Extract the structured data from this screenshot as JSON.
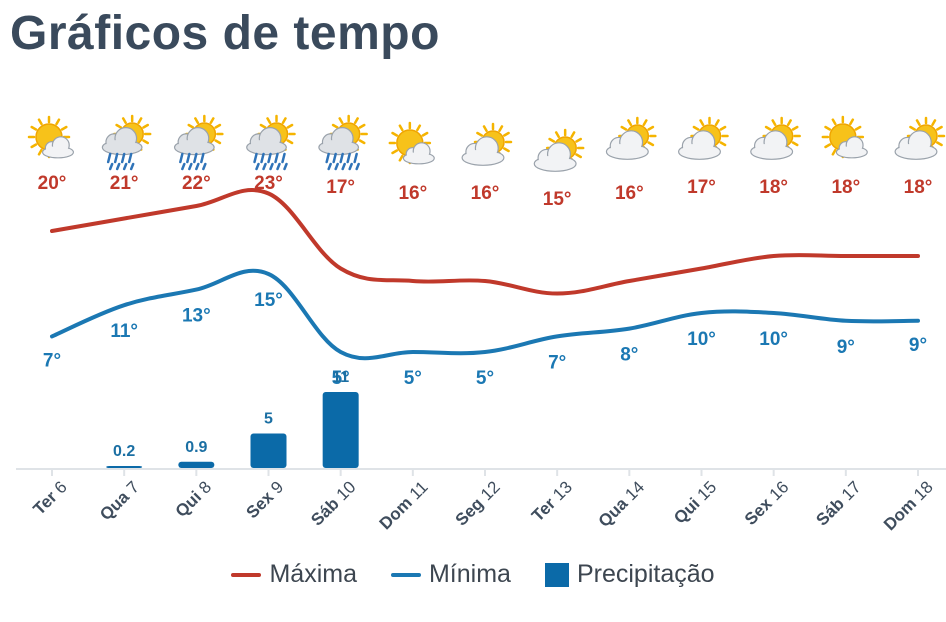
{
  "title": "Gráficos de tempo",
  "colors": {
    "max": "#c0392b",
    "min": "#1b78b3",
    "precip": "#0b6aa8",
    "axis": "#dfe3e7"
  },
  "legend": {
    "max": "Máxima",
    "min": "Mínima",
    "precip": "Precipitação"
  },
  "chart_data": {
    "type": "line",
    "categories": [
      {
        "day": "Ter",
        "num": "6"
      },
      {
        "day": "Qua",
        "num": "7"
      },
      {
        "day": "Qui",
        "num": "8"
      },
      {
        "day": "Sex",
        "num": "9"
      },
      {
        "day": "Sáb",
        "num": "10"
      },
      {
        "day": "Dom",
        "num": "11"
      },
      {
        "day": "Seg",
        "num": "12"
      },
      {
        "day": "Ter",
        "num": "13"
      },
      {
        "day": "Qua",
        "num": "14"
      },
      {
        "day": "Qui",
        "num": "15"
      },
      {
        "day": "Sex",
        "num": "16"
      },
      {
        "day": "Sáb",
        "num": "17"
      },
      {
        "day": "Dom",
        "num": "18"
      }
    ],
    "icons": [
      "sun-cloud-icon",
      "rain-sun-cloud-icon",
      "rain-sun-cloud-icon",
      "heavy-rain-sun-cloud-icon",
      "heavy-rain-sun-cloud-icon",
      "sun-cloud-icon",
      "cloud-sun-icon",
      "cloud-sun-icon",
      "cloud-sun-icon",
      "cloud-sun-icon",
      "cloud-sun-icon",
      "sun-cloud-icon",
      "cloud-sun-icon"
    ],
    "series": [
      {
        "name": "Máxima",
        "values": [
          20,
          21,
          22,
          23,
          17,
          16,
          16,
          15,
          16,
          17,
          18,
          18,
          18
        ],
        "labels": [
          "20°",
          "21°",
          "22°",
          "23°",
          "17°",
          "16°",
          "16°",
          "15°",
          "16°",
          "17°",
          "18°",
          "18°",
          "18°"
        ]
      },
      {
        "name": "Mínima",
        "values": [
          7,
          11,
          13,
          15,
          5,
          5,
          5,
          7,
          8,
          10,
          10,
          9,
          9
        ],
        "labels": [
          "7°",
          "11°",
          "13°",
          "15°",
          "5°",
          "5°",
          "5°",
          "7°",
          "8°",
          "10°",
          "10°",
          "9°",
          "9°"
        ]
      },
      {
        "name": "Precipitação",
        "type": "bar",
        "values": [
          0,
          0.2,
          0.9,
          5,
          11,
          0,
          0,
          0,
          0,
          0,
          0,
          0,
          0
        ],
        "labels": [
          "",
          "0.2",
          "0.9",
          "5",
          "11",
          "",
          "",
          "",
          "",
          "",
          "",
          "",
          ""
        ]
      }
    ]
  }
}
